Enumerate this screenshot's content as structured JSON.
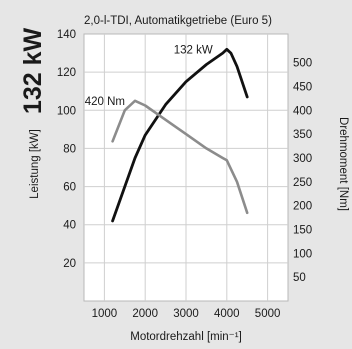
{
  "headline": "132 kW",
  "chart_data": {
    "type": "line",
    "title": "2,0-l-TDI, Automatikgetriebe (Euro 5)",
    "xlabel": "Motordrehzahl [min⁻¹]",
    "ylabel_left": "Leistung [kW]",
    "ylabel_right": "Drehmoment [Nm]",
    "xlim": [
      500,
      5500
    ],
    "ylim_left": [
      0,
      140
    ],
    "ylim_right": [
      0,
      560
    ],
    "x_ticks": [
      1000,
      2000,
      3000,
      4000,
      5000
    ],
    "y_ticks_left": [
      20,
      40,
      60,
      80,
      100,
      120,
      140
    ],
    "y_ticks_right": [
      50,
      100,
      150,
      200,
      250,
      300,
      350,
      400,
      450,
      500
    ],
    "grid": true,
    "series": [
      {
        "name": "Leistung",
        "axis": "left",
        "color": "#111111",
        "x": [
          1200,
          1500,
          1750,
          2000,
          2500,
          3000,
          3500,
          3900,
          4000,
          4100,
          4250,
          4500
        ],
        "y": [
          42,
          60,
          75,
          87,
          103,
          115,
          124,
          130,
          132,
          130,
          123,
          107
        ]
      },
      {
        "name": "Drehmoment",
        "axis": "right",
        "color": "#8c8c8c",
        "x": [
          1200,
          1500,
          1750,
          2000,
          2500,
          3000,
          3500,
          3900,
          4000,
          4250,
          4500
        ],
        "y": [
          335,
          400,
          420,
          410,
          380,
          350,
          320,
          300,
          295,
          250,
          185
        ]
      }
    ],
    "annotations": [
      {
        "text": "132 kW",
        "x": 3900,
        "y": 132,
        "axis": "left"
      },
      {
        "text": "420 Nm",
        "x": 1750,
        "y": 420,
        "axis": "right"
      }
    ]
  }
}
